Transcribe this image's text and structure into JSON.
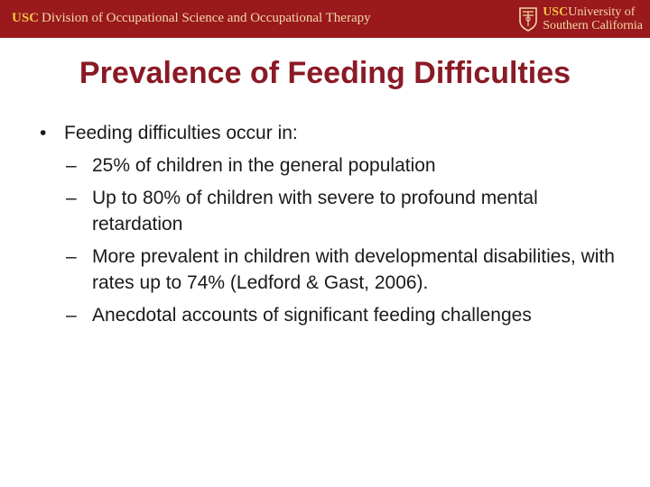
{
  "header": {
    "usc_mark": "USC",
    "division": "Division of Occupational Science and Occupational Therapy",
    "univ_usc": "USC",
    "univ_line1": "University of",
    "univ_line2": "Southern California",
    "banner_color": "#99191c",
    "gold_color": "#f5c242"
  },
  "slide": {
    "title": "Prevalence of Feeding Difficulties",
    "title_color": "#8a1a26",
    "bullet": {
      "marker": "•",
      "text": "Feeding difficulties occur in:",
      "subitems": [
        {
          "marker": "–",
          "text": "25% of children in the general population"
        },
        {
          "marker": "–",
          "text": "Up to 80% of children with severe to profound mental retardation"
        },
        {
          "marker": "–",
          "text": "More prevalent in children with developmental disabilities, with rates up to 74% (Ledford & Gast, 2006)."
        },
        {
          "marker": "–",
          "text": "Anecdotal accounts of significant feeding challenges"
        }
      ]
    }
  }
}
